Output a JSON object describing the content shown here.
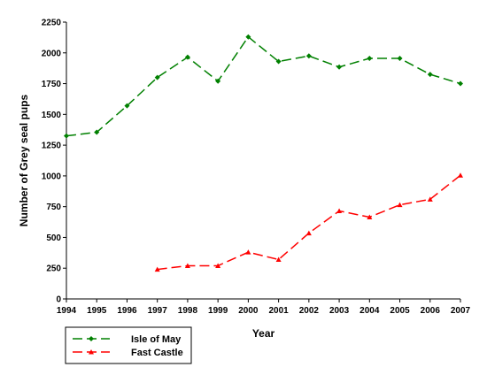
{
  "chart_data": {
    "type": "line",
    "title": "",
    "xlabel": "Year",
    "ylabel": "Number of Grey seal pups",
    "x": [
      1994,
      1995,
      1996,
      1997,
      1998,
      1999,
      2000,
      2001,
      2002,
      2003,
      2004,
      2005,
      2006,
      2007
    ],
    "x_tick_labels": [
      "1994",
      "1995",
      "1996",
      "1997",
      "1998",
      "1999",
      "2000",
      "2001",
      "2002",
      "2003",
      "2004",
      "2005",
      "2006",
      "2007"
    ],
    "y_tick_labels": [
      "0",
      "250",
      "500",
      "750",
      "1000",
      "1250",
      "1500",
      "1750",
      "2000",
      "2250"
    ],
    "ylim": [
      0,
      2250
    ],
    "grid": false,
    "legend_placement": "bottom-left",
    "series": [
      {
        "name": "Isle of May",
        "color": "#008000",
        "marker": "diamond",
        "line_style": "dashed",
        "values": [
          1325,
          1355,
          1570,
          1800,
          1965,
          1770,
          2130,
          1930,
          1975,
          1885,
          1955,
          1955,
          1825,
          1750
        ]
      },
      {
        "name": "Fast Castle",
        "color": "#ff0000",
        "marker": "triangle",
        "line_style": "dashed",
        "values": [
          null,
          null,
          null,
          240,
          270,
          270,
          380,
          320,
          535,
          715,
          665,
          765,
          810,
          1005
        ]
      }
    ]
  }
}
